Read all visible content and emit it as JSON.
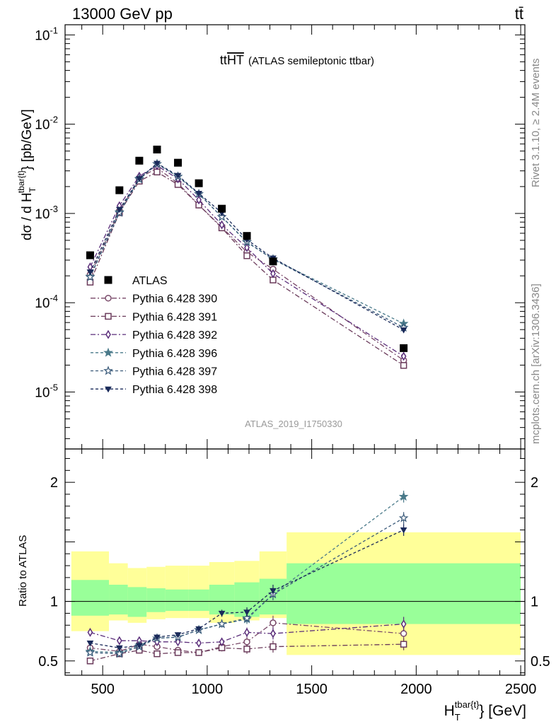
{
  "header": {
    "left": "13000 GeV pp",
    "right": "tt̄"
  },
  "side_labels": {
    "top": "Rivet 3.1.10, ≥ 2.4M events",
    "bottom": "mcplots.cern.ch [arXiv:1306.3436]"
  },
  "main_title": {
    "prefix": "tt",
    "overline": "HT",
    "suffix": "(ATLAS semileptonic ttbar)"
  },
  "analysis_id": "ATLAS_2019_I1750330",
  "colors": {
    "data": "#000000",
    "band_inner": "#99ff99",
    "band_outer": "#ffff99",
    "s390": "#7a4a6a",
    "s391": "#6a3a5a",
    "s392": "#5a2d7a",
    "s396": "#4a7a8a",
    "s397": "#3a5a7a",
    "s398": "#1a2a5a"
  },
  "chart_data": {
    "type": "scatter",
    "title": "ttHT (ATLAS semileptonic ttbar)",
    "xlabel": "H_T^{tbar{t}} [GeV]",
    "ylabel": "dσ / d H_T^{tbar{t}} [pb/GeV]",
    "ratio_ylabel": "Ratio to ATLAS",
    "xlim": [
      320,
      2520
    ],
    "ylim": [
      2.3e-06,
      0.13
    ],
    "yscale": "log",
    "ratio_ylim": [
      0.38,
      2.28
    ],
    "x_ticks": [
      500,
      1000,
      1500,
      2000,
      2500
    ],
    "x_tick_labels": [
      "500",
      "1000",
      "1500",
      "2000",
      "2500"
    ],
    "y_tick_labels": [
      "10^{-1}",
      "10^{-2}",
      "10^{-3}",
      "10^{-4}",
      "10^{-5}"
    ],
    "ratio_ticks": [
      0.5,
      1,
      2
    ],
    "ratio_tick_labels": [
      "0.5",
      "1",
      "2"
    ],
    "x": [
      440,
      580,
      675,
      760,
      860,
      960,
      1070,
      1190,
      1315,
      1940
    ],
    "data": {
      "name": "ATLAS",
      "values": [
        0.00034,
        0.00182,
        0.0039,
        0.0052,
        0.0037,
        0.00218,
        0.00113,
        0.00056,
        0.00029,
        3.1e-05
      ]
    },
    "bands": [
      {
        "xlo": 350,
        "xhi": 530,
        "outer_lo": 0.75,
        "outer_hi": 1.42,
        "inner_lo": 0.88,
        "inner_hi": 1.18
      },
      {
        "xlo": 530,
        "xhi": 620,
        "outer_lo": 0.84,
        "outer_hi": 1.32,
        "inner_lo": 0.89,
        "inner_hi": 1.14
      },
      {
        "xlo": 620,
        "xhi": 710,
        "outer_lo": 0.82,
        "outer_hi": 1.28,
        "inner_lo": 0.87,
        "inner_hi": 1.12
      },
      {
        "xlo": 710,
        "xhi": 800,
        "outer_lo": 0.85,
        "outer_hi": 1.29,
        "inner_lo": 0.91,
        "inner_hi": 1.11
      },
      {
        "xlo": 800,
        "xhi": 910,
        "outer_lo": 0.86,
        "outer_hi": 1.3,
        "inner_lo": 0.92,
        "inner_hi": 1.1
      },
      {
        "xlo": 910,
        "xhi": 1010,
        "outer_lo": 0.86,
        "outer_hi": 1.3,
        "inner_lo": 0.92,
        "inner_hi": 1.1
      },
      {
        "xlo": 1010,
        "xhi": 1130,
        "outer_lo": 0.82,
        "outer_hi": 1.33,
        "inner_lo": 0.89,
        "inner_hi": 1.14
      },
      {
        "xlo": 1130,
        "xhi": 1250,
        "outer_lo": 0.84,
        "outer_hi": 1.34,
        "inner_lo": 0.87,
        "inner_hi": 1.16
      },
      {
        "xlo": 1250,
        "xhi": 1380,
        "outer_lo": 0.86,
        "outer_hi": 1.42,
        "inner_lo": 0.89,
        "inner_hi": 1.19
      },
      {
        "xlo": 1380,
        "xhi": 2500,
        "outer_lo": 0.55,
        "outer_hi": 1.58,
        "inner_lo": 0.81,
        "inner_hi": 1.32
      }
    ],
    "series": [
      {
        "name": "Pythia 6.428 390",
        "marker": "circle",
        "dash": "7,3,2,3",
        "color_key": "s390",
        "ratio": [
          0.61,
          0.58,
          0.64,
          0.62,
          0.59,
          0.57,
          0.62,
          0.66,
          0.82,
          0.73
        ],
        "err": [
          0.02,
          0.02,
          0.02,
          0.02,
          0.02,
          0.02,
          0.03,
          0.04,
          0.06,
          0.06
        ]
      },
      {
        "name": "Pythia 6.428 391",
        "marker": "square",
        "dash": "7,3,2,3",
        "color_key": "s391",
        "ratio": [
          0.5,
          0.56,
          0.59,
          0.56,
          0.57,
          0.57,
          0.61,
          0.6,
          0.62,
          0.64
        ],
        "err": [
          0.02,
          0.02,
          0.02,
          0.02,
          0.02,
          0.02,
          0.03,
          0.04,
          0.05,
          0.05
        ]
      },
      {
        "name": "Pythia 6.428 392",
        "marker": "diamond",
        "dash": "7,3,2,3",
        "color_key": "s392",
        "ratio": [
          0.74,
          0.67,
          0.67,
          0.66,
          0.66,
          0.65,
          0.66,
          0.74,
          0.73,
          0.81
        ],
        "err": [
          0.03,
          0.02,
          0.02,
          0.02,
          0.02,
          0.02,
          0.03,
          0.04,
          0.05,
          0.06
        ]
      },
      {
        "name": "Pythia 6.428 396",
        "marker": "star-filled",
        "dash": "4,3",
        "color_key": "s396",
        "ratio": [
          0.58,
          0.57,
          0.63,
          0.69,
          0.7,
          0.76,
          0.81,
          0.85,
          1.06,
          1.88
        ],
        "err": [
          0.02,
          0.02,
          0.02,
          0.02,
          0.02,
          0.02,
          0.03,
          0.04,
          0.05,
          0.05
        ]
      },
      {
        "name": "Pythia 6.428 397",
        "marker": "star-open",
        "dash": "4,3",
        "color_key": "s397",
        "ratio": [
          0.57,
          0.56,
          0.62,
          0.69,
          0.7,
          0.76,
          0.81,
          0.86,
          1.06,
          1.7
        ],
        "err": [
          0.02,
          0.02,
          0.02,
          0.02,
          0.02,
          0.02,
          0.03,
          0.04,
          0.05,
          0.05
        ]
      },
      {
        "name": "Pythia 6.428 398",
        "marker": "triangle-down",
        "dash": "4,3",
        "color_key": "s398",
        "ratio": [
          0.65,
          0.61,
          0.63,
          0.7,
          0.72,
          0.77,
          0.9,
          0.91,
          1.09,
          1.6
        ],
        "err": [
          0.02,
          0.02,
          0.02,
          0.02,
          0.02,
          0.02,
          0.03,
          0.04,
          0.05,
          0.05
        ]
      }
    ],
    "legend_placement": "center-left of main panel",
    "grid": false
  }
}
